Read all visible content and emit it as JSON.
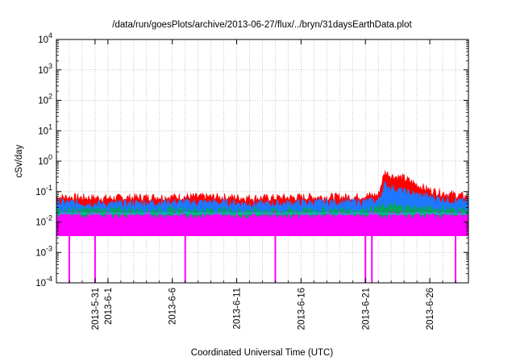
{
  "chart_data": {
    "type": "area",
    "title": "/data/run/goesPlots/archive/2013-06-27/flux/../bryn/31daysEarthData.plot",
    "xlabel": "Coordinated Universal Time (UTC)",
    "ylabel": "cSv/day",
    "yscale": "log",
    "ylim": [
      0.0001,
      10000
    ],
    "xlim": [
      "2013-05-28",
      "2013-06-29"
    ],
    "grid": true,
    "y_ticks": [
      {
        "base": "10",
        "exp": "-4",
        "value": 0.0001
      },
      {
        "base": "10",
        "exp": "-3",
        "value": 0.001
      },
      {
        "base": "10",
        "exp": "-2",
        "value": 0.01
      },
      {
        "base": "10",
        "exp": "-1",
        "value": 0.1
      },
      {
        "base": "10",
        "exp": "0",
        "value": 1
      },
      {
        "base": "10",
        "exp": "1",
        "value": 10
      },
      {
        "base": "10",
        "exp": "2",
        "value": 100
      },
      {
        "base": "10",
        "exp": "3",
        "value": 1000
      },
      {
        "base": "10",
        "exp": "4",
        "value": 10000
      }
    ],
    "x_ticks": [
      {
        "label": "2013-5-31",
        "date": "2013-05-31"
      },
      {
        "label": "2013-6-1",
        "date": "2013-06-01"
      },
      {
        "label": "2013-6-6",
        "date": "2013-06-06"
      },
      {
        "label": "2013-6-11",
        "date": "2013-06-11"
      },
      {
        "label": "2013-6-16",
        "date": "2013-06-16"
      },
      {
        "label": "2013-6-21",
        "date": "2013-06-21"
      },
      {
        "label": "2013-6-26",
        "date": "2013-06-26"
      }
    ],
    "series_colors": [
      "#ff0000",
      "#1e78ff",
      "#00a65a",
      "#00c8c8",
      "#ff00ff",
      "#ff9900"
    ],
    "series": [
      {
        "color": "#ff0000",
        "x": [
          "2013-05-28",
          "2013-06-01",
          "2013-06-05",
          "2013-06-09",
          "2013-06-13",
          "2013-06-17",
          "2013-06-20",
          "2013-06-22",
          "2013-06-22T12:00",
          "2013-06-23",
          "2013-06-24",
          "2013-06-25",
          "2013-06-26",
          "2013-06-27",
          "2013-06-28",
          "2013-06-29"
        ],
        "values": [
          0.06,
          0.055,
          0.06,
          0.06,
          0.055,
          0.06,
          0.06,
          0.07,
          0.4,
          0.3,
          0.25,
          0.15,
          0.1,
          0.08,
          0.07,
          0.06
        ]
      },
      {
        "color": "#1e78ff",
        "x": [
          "2013-05-28",
          "2013-06-01",
          "2013-06-05",
          "2013-06-09",
          "2013-06-13",
          "2013-06-17",
          "2013-06-20",
          "2013-06-22",
          "2013-06-22T12:00",
          "2013-06-23",
          "2013-06-24",
          "2013-06-25",
          "2013-06-26",
          "2013-06-27",
          "2013-06-28",
          "2013-06-29"
        ],
        "values": [
          0.04,
          0.035,
          0.04,
          0.04,
          0.035,
          0.04,
          0.04,
          0.045,
          0.15,
          0.12,
          0.09,
          0.07,
          0.06,
          0.05,
          0.045,
          0.04
        ]
      },
      {
        "color": "#00a65a",
        "x": [
          "2013-05-28",
          "2013-06-05",
          "2013-06-13",
          "2013-06-21",
          "2013-06-23",
          "2013-06-25",
          "2013-06-29"
        ],
        "values": [
          0.022,
          0.022,
          0.021,
          0.022,
          0.03,
          0.025,
          0.022
        ]
      },
      {
        "color": "#ff00ff",
        "x": [
          "2013-05-28",
          "2013-06-05",
          "2013-06-13",
          "2013-06-21",
          "2013-06-23",
          "2013-06-25",
          "2013-06-29"
        ],
        "values": [
          0.015,
          0.015,
          0.015,
          0.015,
          0.015,
          0.015,
          0.015
        ],
        "floor": 0.0035,
        "dips": [
          "2013-05-29",
          "2013-05-31",
          "2013-06-07",
          "2013-06-14",
          "2013-06-21",
          "2013-06-21T12:00",
          "2013-06-28"
        ]
      }
    ]
  }
}
